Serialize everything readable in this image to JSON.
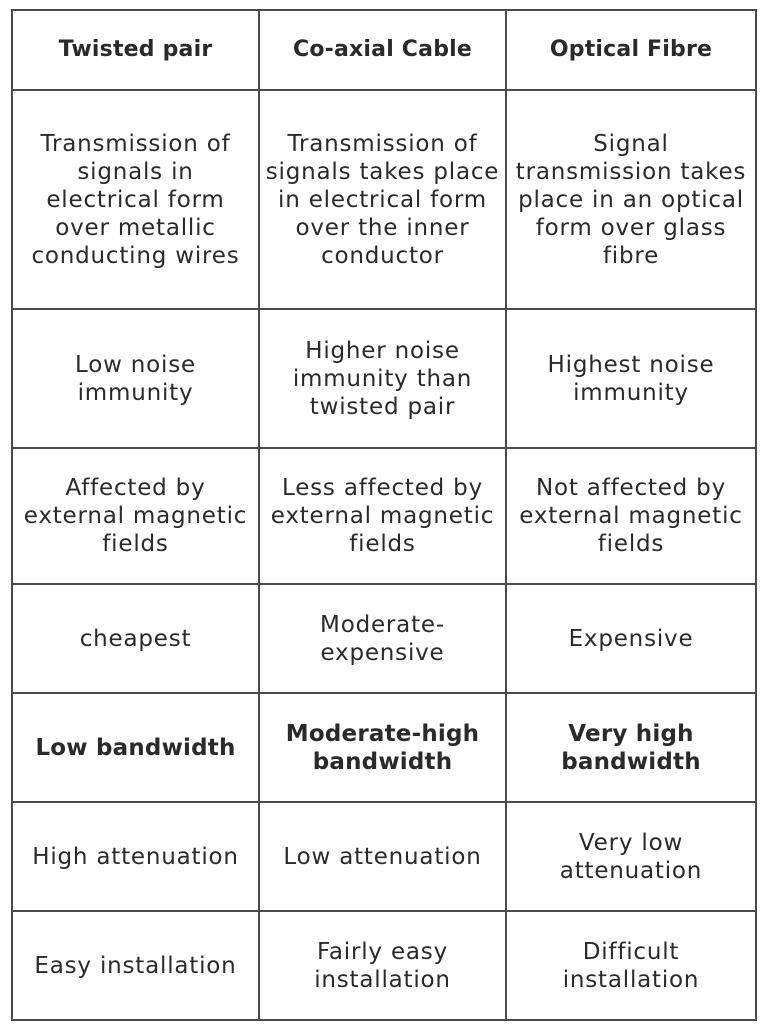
{
  "header": {
    "col1": "Twisted pair",
    "col2": "Co-axial Cable",
    "col3": "Optical Fibre"
  },
  "rows": [
    {
      "c1": "Transmission of signals in electrical form over metallic conducting wires",
      "c2": "Transmission of signals takes place in electrical form over the inner conductor",
      "c3": "Signal transmission takes place in an optical form over glass fibre"
    },
    {
      "c1": "Low noise immunity",
      "c2": "Higher noise immunity than twisted pair",
      "c3": "Highest noise immunity"
    },
    {
      "c1": "Affected by external magnetic fields",
      "c2": "Less affected by external magnetic fields",
      "c3": "Not affected by external magnetic fields"
    },
    {
      "c1": "cheapest",
      "c2": "Moderate-expensive",
      "c3": "Expensive"
    },
    {
      "c1": "Low bandwidth",
      "c2": "Moderate-high bandwidth",
      "c3": "Very high bandwidth"
    },
    {
      "c1": "High attenuation",
      "c2": "Low attenuation",
      "c3": "Very low attenuation"
    },
    {
      "c1": "Easy installation",
      "c2": "Fairly easy installation",
      "c3": "Difficult installation"
    }
  ]
}
